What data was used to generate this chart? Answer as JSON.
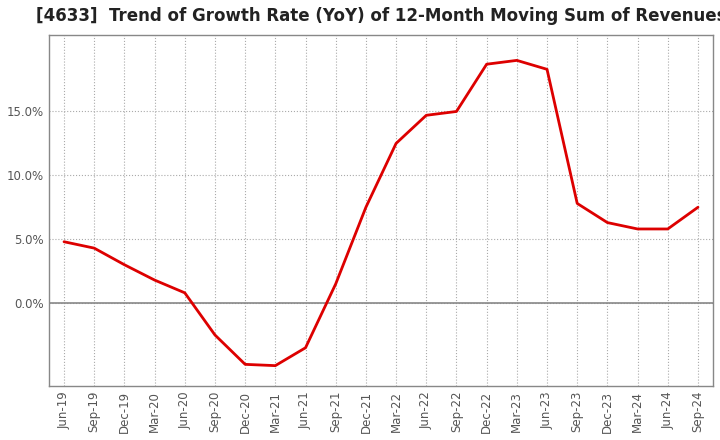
{
  "title": "[4633]  Trend of Growth Rate (YoY) of 12-Month Moving Sum of Revenues",
  "line_color": "#dd0000",
  "bg_color": "#ffffff",
  "plot_bg_color": "#ffffff",
  "grid_color": "#aaaaaa",
  "x_labels": [
    "Jun-19",
    "Sep-19",
    "Dec-19",
    "Mar-20",
    "Jun-20",
    "Sep-20",
    "Dec-20",
    "Mar-21",
    "Jun-21",
    "Sep-21",
    "Dec-21",
    "Mar-22",
    "Jun-22",
    "Sep-22",
    "Dec-22",
    "Mar-23",
    "Jun-23",
    "Sep-23",
    "Dec-23",
    "Mar-24",
    "Jun-24",
    "Sep-24"
  ],
  "y_values": [
    4.8,
    4.3,
    3.0,
    1.8,
    0.8,
    -2.5,
    -4.8,
    -4.9,
    -3.5,
    1.5,
    7.5,
    12.5,
    14.7,
    15.0,
    18.7,
    19.0,
    18.3,
    7.8,
    6.3,
    5.8,
    5.8,
    7.5
  ],
  "ylim": [
    -6.5,
    21.0
  ],
  "ytick_vals": [
    0.0,
    5.0,
    10.0,
    15.0
  ],
  "ytick_labels": [
    "0.0%",
    "5.0%",
    "10.0%",
    "15.0%"
  ],
  "zero_line_color": "#888888",
  "title_fontsize": 12,
  "tick_fontsize": 8.5,
  "border_color": "#888888"
}
